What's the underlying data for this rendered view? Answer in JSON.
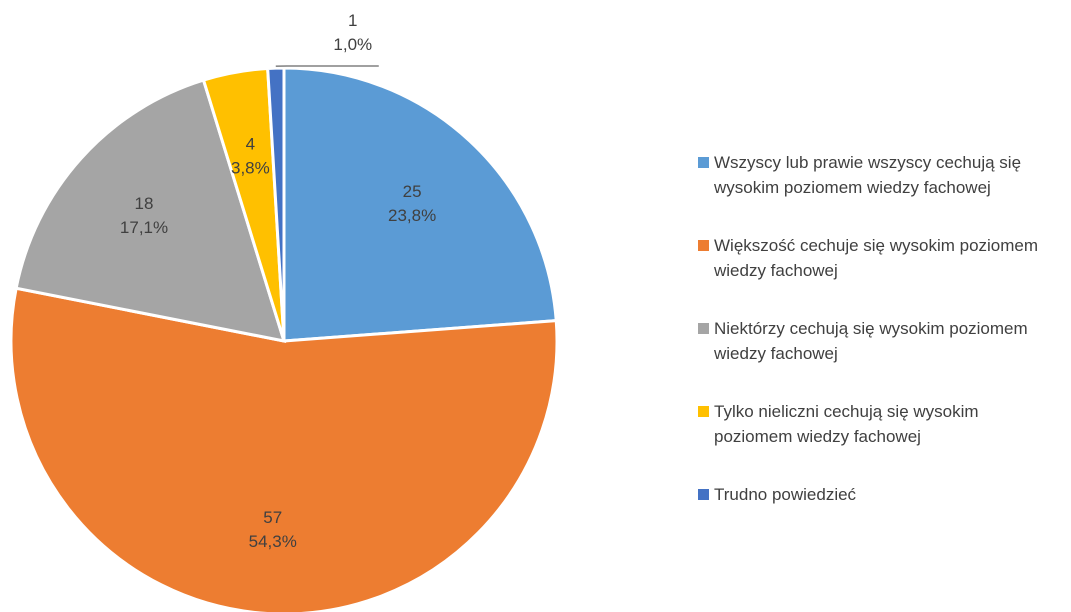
{
  "chart_data": {
    "type": "pie",
    "categories": [
      "Wszyscy lub prawie wszyscy cechują się wysokim poziomem wiedzy fachowej",
      "Większość cechuje się wysokim poziomem wiedzy fachowej",
      "Niektórzy cechują się wysokim poziomem wiedzy fachowej",
      "Tylko nieliczni cechują się wysokim poziomem wiedzy fachowej",
      "Trudno powiedzieć"
    ],
    "values": [
      25,
      57,
      18,
      4,
      1
    ],
    "percentages": [
      23.8,
      54.3,
      17.1,
      3.8,
      1.0
    ],
    "percentage_labels": [
      "23,8%",
      "54,3%",
      "17,1%",
      "3,8%",
      "1,0%"
    ],
    "colors": [
      "#5b9bd5",
      "#ed7d31",
      "#a5a5a5",
      "#ffc000",
      "#4472c4"
    ],
    "legend": "right"
  }
}
